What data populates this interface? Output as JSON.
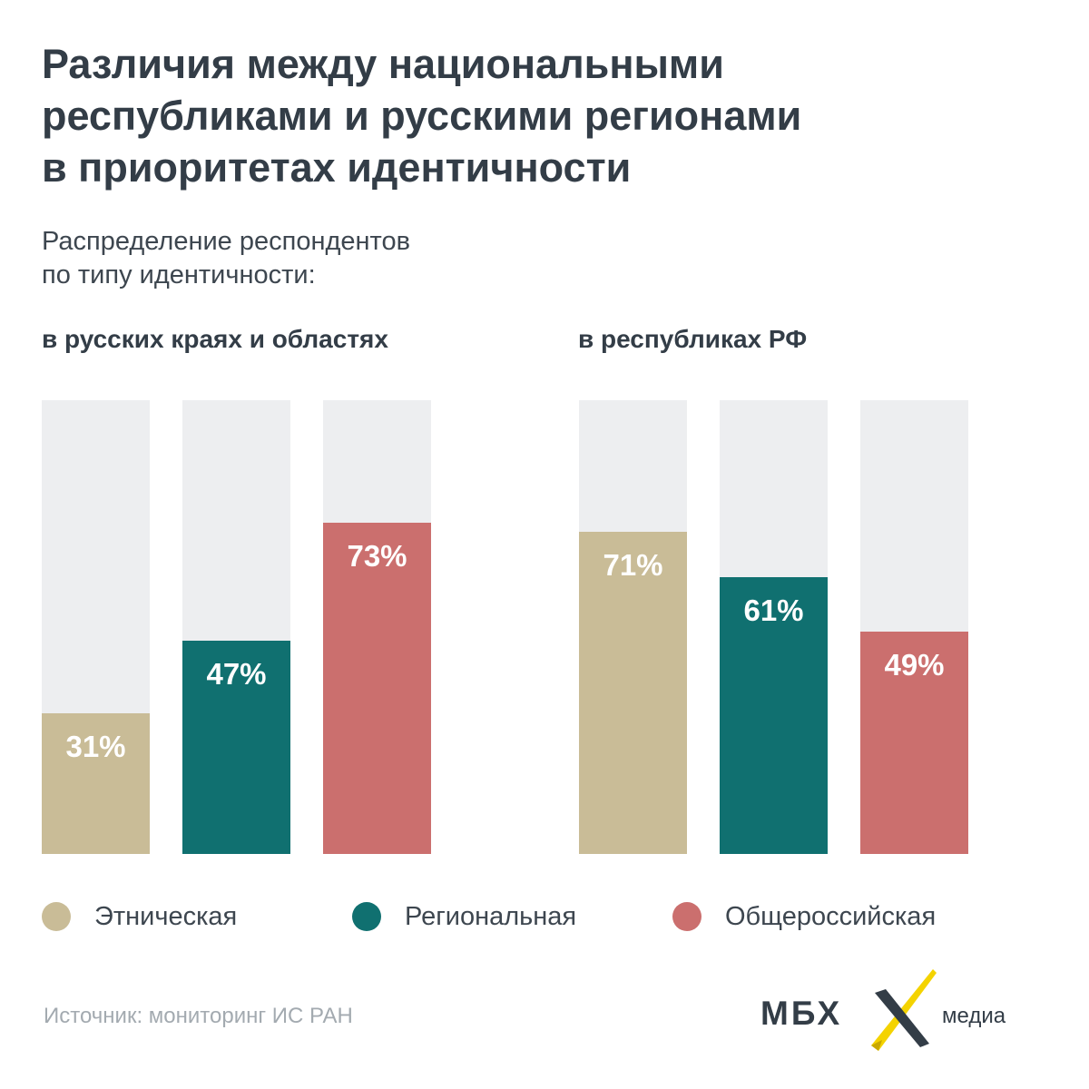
{
  "title_lines": [
    "Различия между национальными",
    "республиками и русскими регионами",
    "в приоритетах идентичности"
  ],
  "subtitle_lines": [
    "Распределение респондентов",
    "по типу идентичности:"
  ],
  "colors": {
    "ethnic": "#c9bc97",
    "regional": "#107070",
    "all_russian": "#cb6f6e",
    "track": "#edeef0"
  },
  "chart_data": [
    {
      "type": "bar",
      "title": "в русских краях и областях",
      "categories": [
        "Этническая",
        "Региональная",
        "Общероссийская"
      ],
      "values": [
        31,
        47,
        73
      ],
      "labels": [
        "31%",
        "47%",
        "73%"
      ],
      "ylim": [
        0,
        100
      ],
      "grid": false
    },
    {
      "type": "bar",
      "title": "в республиках РФ",
      "categories": [
        "Этническая",
        "Региональная",
        "Общероссийская"
      ],
      "values": [
        71,
        61,
        49
      ],
      "labels": [
        "71%",
        "61%",
        "49%"
      ],
      "ylim": [
        0,
        100
      ],
      "grid": false
    }
  ],
  "legend": [
    {
      "label": "Этническая",
      "color": "#c9bc97"
    },
    {
      "label": "Региональная",
      "color": "#107070"
    },
    {
      "label": "Общероссийская",
      "color": "#cb6f6e"
    }
  ],
  "source": "Источник: мониторинг ИС РАН",
  "logo": {
    "main": "МБХ",
    "suffix": "медиа",
    "mark_color": "#f4d300"
  }
}
